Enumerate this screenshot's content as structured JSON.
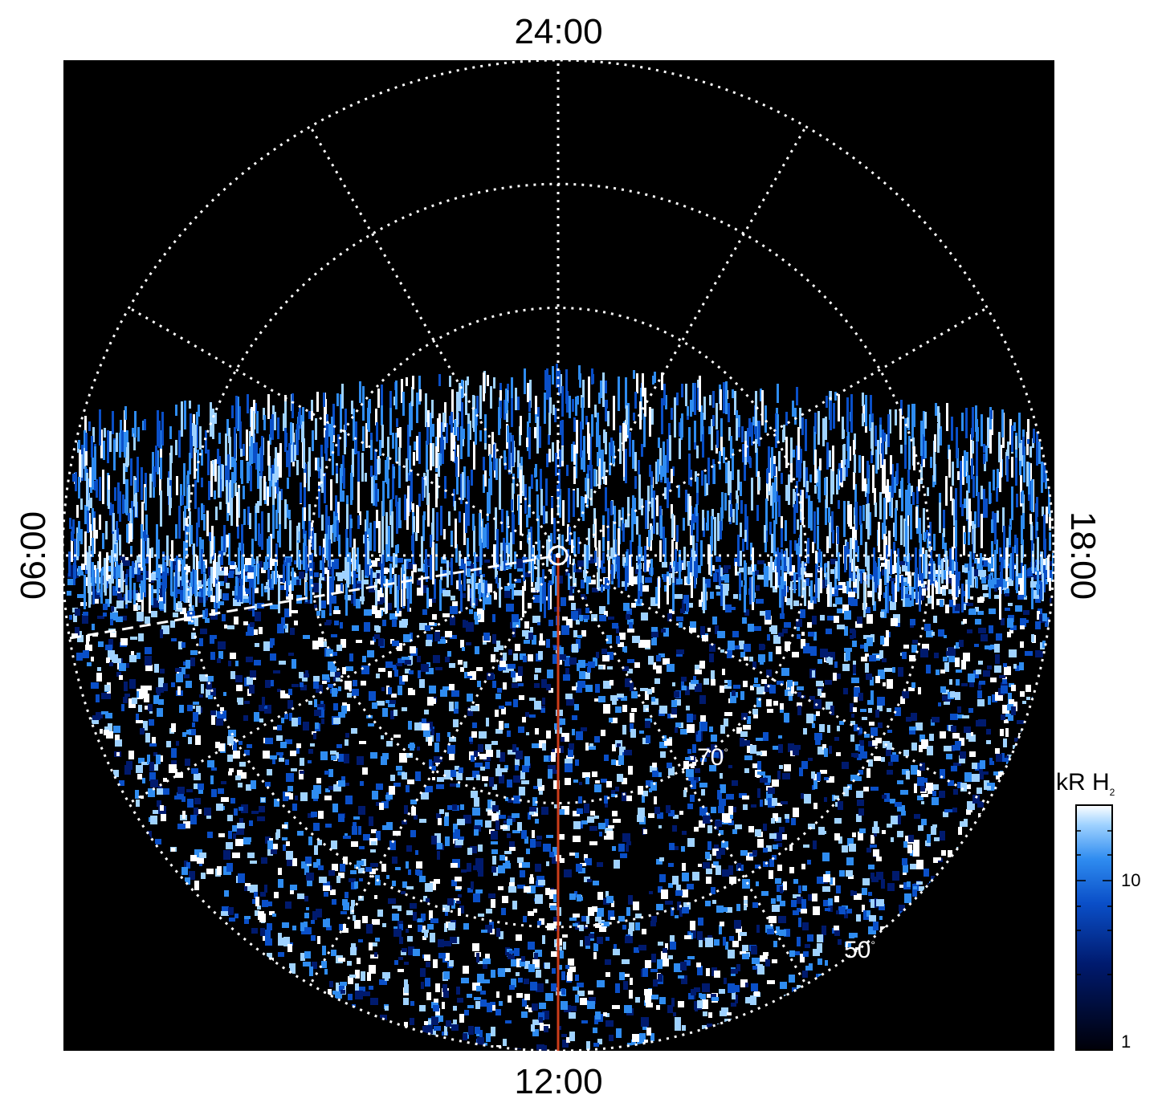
{
  "chart_data": {
    "type": "heatmap",
    "projection": "polar (magnetic local time / latitude)",
    "local_time_labels": {
      "top": "24:00",
      "bottom": "12:00",
      "left": "06:00",
      "right": "18:00"
    },
    "latitude_labels": [
      {
        "text": "70",
        "unit": "°"
      },
      {
        "text": "50",
        "unit": "°"
      }
    ],
    "colorbar": {
      "title": "kR H",
      "title_subscript": "2",
      "scale": "log",
      "range": [
        1,
        25
      ],
      "tick_labels": [
        "10",
        "1"
      ],
      "colors": [
        "#000008",
        "#001a6e",
        "#0a4fc8",
        "#2f8cf0",
        "#9fd2ff",
        "#ffffff"
      ]
    },
    "grid": "on (dotted white)",
    "overlays": [
      "red line along 12:00 meridian",
      "white dashed line (~07:30)"
    ],
    "colors": {
      "background": "#000000",
      "grid": "#ffffff",
      "meridian_line": "#cc3d1a"
    }
  }
}
